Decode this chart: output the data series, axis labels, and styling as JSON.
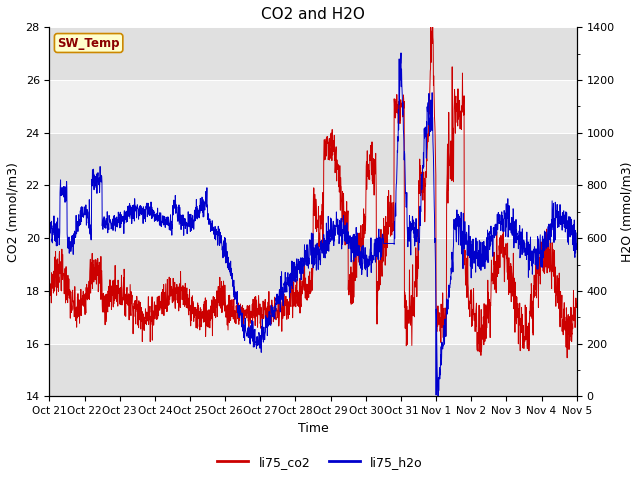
{
  "title": "CO2 and H2O",
  "xlabel": "Time",
  "ylabel_left": "CO2 (mmol/m3)",
  "ylabel_right": "H2O (mmol/m3)",
  "ylim_left": [
    14,
    28
  ],
  "ylim_right": [
    0,
    1400
  ],
  "yticks_left": [
    14,
    16,
    18,
    20,
    22,
    24,
    26,
    28
  ],
  "yticks_right": [
    0,
    200,
    400,
    600,
    800,
    1000,
    1200,
    1400
  ],
  "xtick_labels": [
    "Oct 21",
    "Oct 22",
    "Oct 23",
    "Oct 24",
    "Oct 25",
    "Oct 26",
    "Oct 27",
    "Oct 28",
    "Oct 29",
    "Oct 30",
    "Oct 31",
    "Nov 1",
    "Nov 2",
    "Nov 3",
    "Nov 4",
    "Nov 5"
  ],
  "legend_labels": [
    "li75_co2",
    "li75_h2o"
  ],
  "legend_colors": [
    "#cc0000",
    "#0000cc"
  ],
  "co2_color": "#cc0000",
  "h2o_color": "#0000cc",
  "sw_temp_label": "SW_Temp",
  "sw_temp_box_facecolor": "#ffffcc",
  "sw_temp_box_edgecolor": "#cc8800",
  "sw_temp_text_color": "#8b0000",
  "background_color": "#ffffff",
  "band_dark": "#e0e0e0",
  "band_light": "#f0f0f0",
  "title_fontsize": 11,
  "axis_label_fontsize": 9,
  "tick_fontsize": 8
}
